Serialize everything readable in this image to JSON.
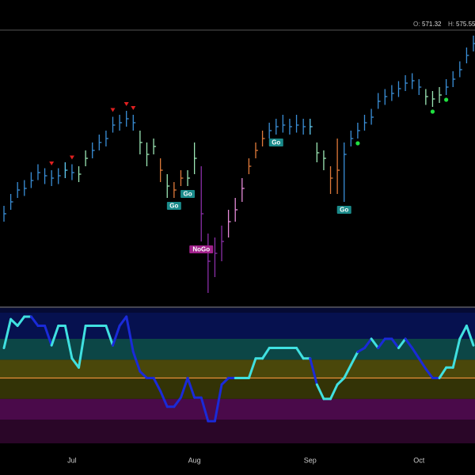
{
  "header": {
    "open_label": "O:",
    "open": "571.32",
    "high_label": "H:",
    "high": "575.55"
  },
  "chart_data": [
    {
      "type": "ohlc",
      "categories": [
        null,
        null,
        null,
        null,
        null,
        null,
        null,
        null,
        null,
        null,
        "Jul",
        null,
        null,
        null,
        null,
        null,
        null,
        null,
        null,
        null,
        null,
        null,
        null,
        null,
        null,
        null,
        null,
        null,
        "Aug",
        null,
        null,
        null,
        null,
        null,
        null,
        null,
        null,
        null,
        null,
        null,
        null,
        null,
        null,
        null,
        null,
        "Sep",
        null,
        null,
        null,
        null,
        null,
        null,
        null,
        null,
        null,
        null,
        null,
        null,
        null,
        null,
        null,
        "Oct",
        null,
        null,
        null,
        null,
        null,
        null,
        null,
        null
      ],
      "close": [
        535,
        538,
        541,
        541.4,
        543.4,
        545.4,
        544.6,
        544,
        544.6,
        546,
        545.4,
        545,
        549,
        551,
        553,
        554,
        557.4,
        558,
        559,
        558,
        553,
        550,
        552,
        546,
        542,
        541,
        544,
        544,
        549,
        535,
        523,
        525,
        528,
        533,
        536,
        541.4,
        547,
        551,
        554,
        556,
        557,
        557.4,
        557,
        557.4,
        557,
        557,
        550.4,
        549,
        544,
        546,
        550,
        554,
        556,
        558,
        559.4,
        563.4,
        564.6,
        565.4,
        566.6,
        568,
        568.6,
        567,
        564.6,
        564,
        565,
        567,
        569,
        571.4,
        575,
        578
      ],
      "high": [
        537,
        540,
        543,
        543.5,
        545.5,
        547.5,
        546.5,
        546,
        546.5,
        548,
        547.5,
        547,
        551,
        553,
        555,
        556,
        559.5,
        560,
        561,
        560,
        556,
        553,
        554,
        549,
        545,
        543,
        546,
        546,
        553,
        547,
        530,
        529,
        532,
        536,
        539,
        544,
        549,
        553,
        556,
        558,
        559,
        560,
        559,
        560,
        559,
        559,
        553,
        551,
        547,
        554,
        553,
        556,
        558,
        560,
        561.5,
        565.5,
        566.5,
        567.5,
        568.5,
        570,
        570.5,
        569,
        566.5,
        566,
        567,
        569,
        571,
        573.5,
        577,
        580
      ],
      "low": [
        533,
        536,
        539,
        539.5,
        541.5,
        543.5,
        542.5,
        542,
        542.5,
        544,
        543.5,
        543,
        547,
        549,
        551,
        552,
        555.5,
        556,
        557,
        556,
        550,
        547,
        550,
        543,
        539,
        539,
        542,
        542,
        545,
        528,
        515,
        519,
        523,
        529,
        533,
        538,
        545,
        549,
        552,
        554,
        555,
        555.5,
        555,
        555.5,
        555,
        555,
        548,
        546,
        540,
        540,
        538,
        552,
        554,
        556,
        557.5,
        561.5,
        562.5,
        563.5,
        564.5,
        566,
        566.5,
        565,
        562.5,
        562,
        563,
        565,
        567,
        569.5,
        573,
        576
      ],
      "colors": [
        "#3a8fd8",
        "#3a8fd8",
        "#3a8fd8",
        "#3a8fd8",
        "#3a8fd8",
        "#3a8fd8",
        "#3a8fd8",
        "#3a8fd8",
        "#3a8fd8",
        "#5ec8f0",
        "#3a8fd8",
        "#9be6b4",
        "#9be6b4",
        "#3a8fd8",
        "#3a8fd8",
        "#3a8fd8",
        "#3a8fd8",
        "#3a8fd8",
        "#3a8fd8",
        "#3a8fd8",
        "#9be6b4",
        "#9be6b4",
        "#9be6b4",
        "#e07a3a",
        "#9be6b4",
        "#e07a3a",
        "#e07a3a",
        "#9be6b4",
        "#9be6b4",
        "#8a2fa8",
        "#8a2fa8",
        "#8a2fa8",
        "#8a2fa8",
        "#e58ad8",
        "#e58ad8",
        "#e58ad8",
        "#e07a3a",
        "#e07a3a",
        "#e07a3a",
        "#3a8fd8",
        "#3a8fd8",
        "#3a8fd8",
        "#3a8fd8",
        "#3a8fd8",
        "#3a8fd8",
        "#5ec8f0",
        "#9be6b4",
        "#9be6b4",
        "#e07a3a",
        "#e07a3a",
        "#3a8fd8",
        "#3a8fd8",
        "#3a8fd8",
        "#3a8fd8",
        "#3a8fd8",
        "#3a8fd8",
        "#3a8fd8",
        "#3a8fd8",
        "#3a8fd8",
        "#3a8fd8",
        "#3a8fd8",
        "#3a8fd8",
        "#9be6b4",
        "#9be6b4",
        "#9be6b4",
        "#3a8fd8",
        "#3a8fd8",
        "#3a8fd8",
        "#3a8fd8",
        "#3a8fd8"
      ],
      "ylim": [
        512,
        581
      ],
      "markers": [
        {
          "index": 7,
          "color": "#e02020"
        },
        {
          "index": 10,
          "color": "#e02020"
        },
        {
          "index": 16,
          "color": "#e02020"
        },
        {
          "index": 18,
          "color": "#e02020"
        },
        {
          "index": 19,
          "color": "#e02020"
        }
      ],
      "dots": [
        {
          "index": 52,
          "color": "#20e040"
        },
        {
          "index": 63,
          "color": "#20e040"
        },
        {
          "index": 65,
          "color": "#20e040"
        }
      ],
      "annotations": [
        {
          "text": "Go",
          "index": 25,
          "color": "#1a8a8a"
        },
        {
          "text": "Go",
          "index": 27,
          "color": "#1a8a8a"
        },
        {
          "text": "NoGo",
          "index": 29,
          "color": "#a0208a"
        },
        {
          "text": "Go",
          "index": 40,
          "color": "#1a8a8a"
        },
        {
          "text": "Go",
          "index": 50,
          "color": "#1a8a8a"
        }
      ]
    },
    {
      "type": "oscillator",
      "values": [
        2.3,
        4.5,
        4.0,
        4.7,
        4.7,
        4.0,
        4.0,
        2.5,
        4.0,
        4.0,
        1.5,
        0.8,
        4.0,
        4.0,
        4.0,
        4.0,
        2.5,
        4.0,
        4.7,
        2.0,
        0.5,
        0.0,
        0.0,
        -1.0,
        -2.2,
        -2.2,
        -1.5,
        0.0,
        -1.5,
        -1.5,
        -3.3,
        -3.3,
        -0.5,
        0.0,
        0.0,
        0.0,
        0.0,
        1.5,
        1.5,
        2.3,
        2.3,
        2.3,
        2.3,
        2.3,
        1.5,
        1.5,
        -0.5,
        -1.6,
        -1.6,
        -0.5,
        0.0,
        1.0,
        2.0,
        2.3,
        3.0,
        2.3,
        3.0,
        3.0,
        2.3,
        3.0,
        2.3,
        1.5,
        0.7,
        0.0,
        0.0,
        0.8,
        0.8,
        3.0,
        4.0,
        2.5
      ],
      "colors": [
        "#40e0e0",
        "#40e0e0",
        "#40e0e0",
        "#40e0e0",
        "#40e0e0",
        "#1a2ad8",
        "#1a2ad8",
        "#1a2ad8",
        "#40e0e0",
        "#40e0e0",
        "#40e0e0",
        "#40e0e0",
        "#40e0e0",
        "#40e0e0",
        "#40e0e0",
        "#40e0e0",
        "#40e0e0",
        "#1a2ad8",
        "#1a2ad8",
        "#1a2ad8",
        "#1a2ad8",
        "#1a2ad8",
        "#1a2ad8",
        "#1a2ad8",
        "#1a2ad8",
        "#1a2ad8",
        "#1a2ad8",
        "#1a2ad8",
        "#1a2ad8",
        "#1a2ad8",
        "#1a2ad8",
        "#1a2ad8",
        "#1a2ad8",
        "#1a2ad8",
        "#1a2ad8",
        "#40e0e0",
        "#40e0e0",
        "#40e0e0",
        "#40e0e0",
        "#40e0e0",
        "#40e0e0",
        "#40e0e0",
        "#40e0e0",
        "#40e0e0",
        "#40e0e0",
        "#40e0e0",
        "#1a2ad8",
        "#40e0e0",
        "#40e0e0",
        "#40e0e0",
        "#40e0e0",
        "#40e0e0",
        "#40e0e0",
        "#1a2ad8",
        "#1a2ad8",
        "#40e0e0",
        "#1a2ad8",
        "#1a2ad8",
        "#1a2ad8",
        "#40e0e0",
        "#1a2ad8",
        "#1a2ad8",
        "#1a2ad8",
        "#1a2ad8",
        "#1a2ad8",
        "#40e0e0",
        "#40e0e0",
        "#40e0e0",
        "#40e0e0",
        "#40e0e0"
      ],
      "ylim": [
        -5,
        5
      ],
      "bands": [
        {
          "from": 3,
          "to": 5,
          "color": "#06114f"
        },
        {
          "from": 1.4,
          "to": 3,
          "color": "#0c4646"
        },
        {
          "from": 0,
          "to": 1.4,
          "color": "#4a470a"
        },
        {
          "from": -1.6,
          "to": 0,
          "color": "#333306"
        },
        {
          "from": -3.2,
          "to": -1.6,
          "color": "#4a0a4a"
        },
        {
          "from": -5,
          "to": -3.2,
          "color": "#2a0628"
        }
      ],
      "zero_line": {
        "value": 0,
        "color": "#e8903a"
      }
    }
  ]
}
